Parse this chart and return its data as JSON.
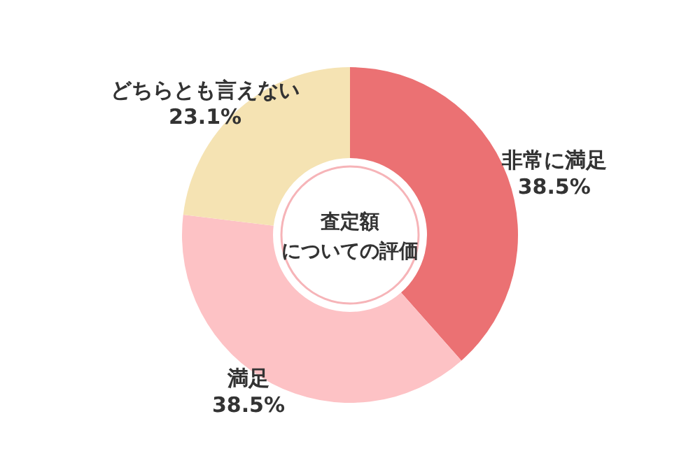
{
  "chart_data": {
    "type": "donut",
    "title": "査定額",
    "subtitle": "についての評価",
    "categories": [
      "非常に満足",
      "満足",
      "どちらとも言えない"
    ],
    "values": [
      38.5,
      38.5,
      23.1
    ],
    "value_labels": [
      "38.5%",
      "38.5%",
      "23.1%"
    ],
    "colors": [
      "#eb7173",
      "#fdc2c5",
      "#f5e3b3"
    ]
  }
}
